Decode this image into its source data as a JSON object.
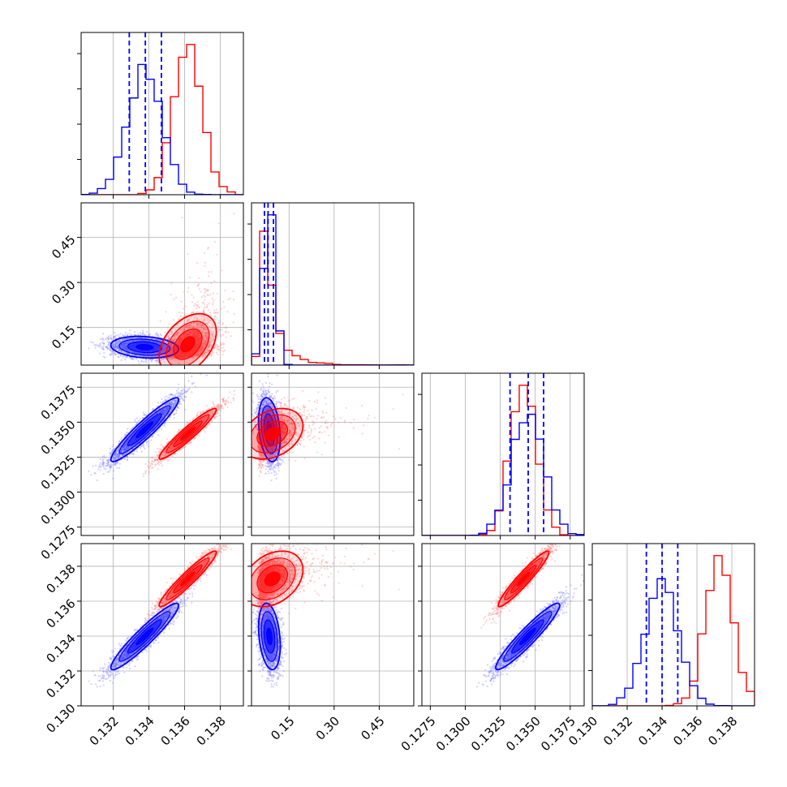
{
  "chart_data": {
    "type": "corner",
    "title": "",
    "grid": true,
    "colors": {
      "blue": "#0000ff",
      "red": "#ff0000",
      "scatter_blue": "#7f7fff",
      "scatter_red": "#ff8080"
    },
    "parameters": [
      {
        "index": 0,
        "range": [
          0.1302,
          0.1393
        ],
        "ticks": [
          0.132,
          0.134,
          0.136,
          0.138
        ],
        "tick_labels": [
          "0.132",
          "0.134",
          "0.136",
          "0.138"
        ]
      },
      {
        "index": 1,
        "range": [
          0.025,
          0.565
        ],
        "ticks": [
          0.15,
          0.3,
          0.45
        ],
        "tick_labels": [
          "0.15",
          "0.30",
          "0.45"
        ]
      },
      {
        "index": 2,
        "range": [
          0.1269,
          0.1385
        ],
        "ticks": [
          0.1275,
          0.13,
          0.1325,
          0.135,
          0.1375
        ],
        "tick_labels": [
          "0.1275",
          "0.1300",
          "0.1325",
          "0.1350",
          "0.1375"
        ]
      },
      {
        "index": 3,
        "range": [
          0.13,
          0.1393
        ],
        "ticks": [
          0.13,
          0.132,
          0.134,
          0.136,
          0.138
        ],
        "tick_labels": [
          "0.130",
          "0.132",
          "0.134",
          "0.136",
          "0.138"
        ]
      }
    ],
    "series": [
      {
        "color": "blue",
        "mean": [
          0.1338,
          0.085,
          0.1345,
          0.134
        ],
        "std": [
          0.00095,
          0.018,
          0.00115,
          0.00095
        ],
        "corr": [
          [
            1,
            -0.2,
            0.94,
            0.94
          ],
          [
            -0.2,
            1,
            -0.3,
            -0.3
          ],
          [
            0.94,
            -0.3,
            1,
            0.94
          ],
          [
            0.94,
            -0.3,
            0.94,
            1
          ]
        ],
        "quantiles": [
          [
            0.1329,
            0.1338,
            0.1347
          ],
          [
            0.068,
            0.08,
            0.098
          ],
          [
            0.1332,
            0.1345,
            0.1356
          ],
          [
            0.1331,
            0.134,
            0.1349
          ]
        ]
      },
      {
        "color": "red",
        "mean": [
          0.1362,
          0.09,
          0.1342,
          0.1373
        ],
        "std": [
          0.0008,
          0.06,
          0.0009,
          0.0008
        ],
        "corr": [
          [
            1,
            0.5,
            0.95,
            0.95
          ],
          [
            0.5,
            1,
            0.4,
            0.4
          ],
          [
            0.95,
            0.4,
            1,
            0.95
          ],
          [
            0.95,
            0.4,
            0.95,
            1
          ]
        ]
      }
    ]
  }
}
